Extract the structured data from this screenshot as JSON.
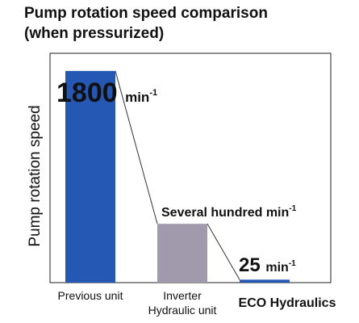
{
  "chart_data": {
    "type": "bar",
    "title_line1": "Pump rotation speed comparison",
    "title_line2": "(when pressurized)",
    "ylabel": "Pump rotation speed",
    "xlabel": "",
    "ylim": [
      0,
      1950
    ],
    "grid": false,
    "categories": [
      {
        "lines": [
          "Previous unit"
        ],
        "emphasis": false
      },
      {
        "lines": [
          "Inverter",
          "Hydraulic unit"
        ],
        "emphasis": false
      },
      {
        "lines": [
          "ECO Hydraulics"
        ],
        "emphasis": true
      }
    ],
    "values": [
      1800,
      500,
      25
    ],
    "colors": [
      "#2557b5",
      "#a19aac",
      "#2557b5"
    ],
    "data_labels": [
      {
        "value_text": "1800",
        "unit": "min",
        "exponent": "-1",
        "style": "large"
      },
      {
        "value_text": "Several hundred",
        "unit": "min",
        "exponent": "-1",
        "style": "small"
      },
      {
        "value_text": "25",
        "unit": "min",
        "exponent": "-1",
        "style": "medium"
      }
    ]
  }
}
